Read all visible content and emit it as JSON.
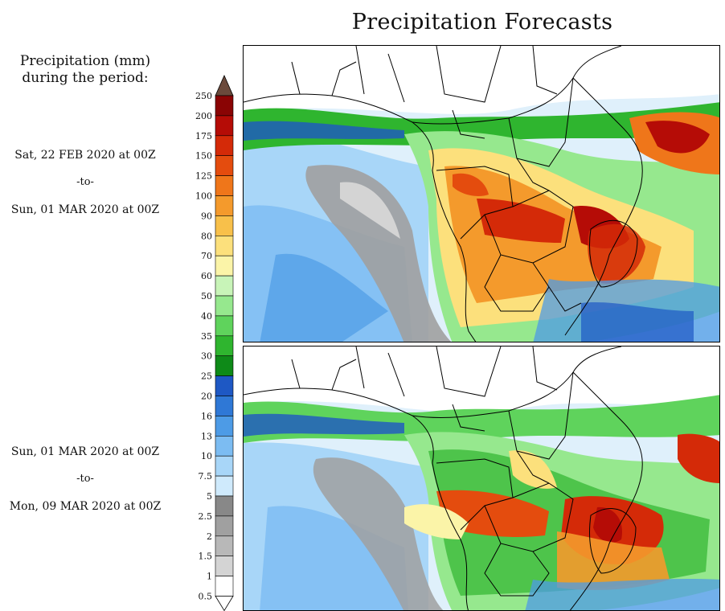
{
  "title": "Precipitation Forecasts",
  "legend": {
    "heading_line1": "Precipitation (mm)",
    "heading_line2": "during the period:",
    "levels": [
      "0.5",
      "1",
      "1.5",
      "2",
      "2.5",
      "5",
      "7.5",
      "10",
      "13",
      "16",
      "20",
      "25",
      "30",
      "35",
      "40",
      "50",
      "60",
      "70",
      "80",
      "90",
      "100",
      "125",
      "150",
      "175",
      "200",
      "250"
    ],
    "colors": [
      "#ffffff",
      "#d4d4d4",
      "#b8b8b8",
      "#a0a0a0",
      "#888888",
      "#cfeafc",
      "#a8d6f8",
      "#7cbcf2",
      "#4d9be6",
      "#2f78d6",
      "#1e58c4",
      "#0e8a18",
      "#2fb52f",
      "#5fd35c",
      "#96e88e",
      "#c8f4b8",
      "#fbf4a8",
      "#fce07c",
      "#f8c04a",
      "#f49a2c",
      "#ef761a",
      "#e44c0e",
      "#d42a08",
      "#b50c06",
      "#8a0404"
    ],
    "cap_color": "#6b4a3c"
  },
  "periods": [
    {
      "start": "Sat, 22 FEB 2020 at 00Z",
      "sep": "-to-",
      "end": "Sun, 01 MAR 2020 at 00Z"
    },
    {
      "start": "Sun, 01 MAR 2020 at 00Z",
      "sep": "-to-",
      "end": "Mon, 09 MAR 2020 at 00Z"
    }
  ]
}
